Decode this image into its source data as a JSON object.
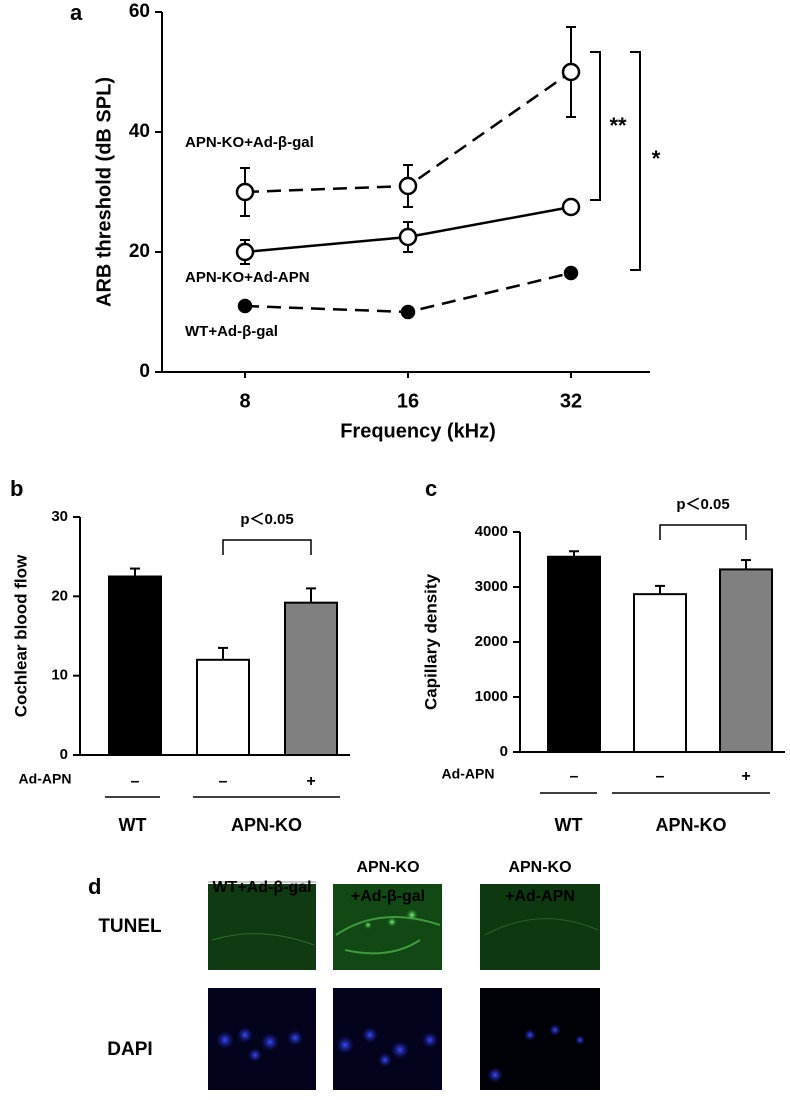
{
  "chart_data": [
    {
      "type": "line",
      "panel": "a",
      "ylabel": "ARB threshold (dB SPL)",
      "xlabel": "Frequency (kHz)",
      "categories": [
        "8",
        "16",
        "32"
      ],
      "ylim": [
        0,
        60
      ],
      "yticks": [
        0,
        20,
        40,
        60
      ],
      "series": [
        {
          "name": "APN-KO+Ad-β-gal",
          "color": "#000000",
          "dashed": true,
          "marker": "open",
          "values": [
            30,
            31,
            50
          ],
          "errors": [
            4,
            3.5,
            7.5
          ]
        },
        {
          "name": "APN-KO+Ad-APN",
          "color": "#000000",
          "dashed": false,
          "marker": "open",
          "values": [
            20,
            22.5,
            27.5
          ],
          "errors": [
            2,
            2.5,
            1
          ]
        },
        {
          "name": "WT+Ad-β-gal",
          "color": "#000000",
          "dashed": true,
          "marker": "filled",
          "values": [
            11,
            10,
            16.5
          ],
          "errors": [
            0.5,
            0.5,
            0.5
          ]
        }
      ],
      "annotations": [
        "**",
        "*"
      ]
    },
    {
      "type": "bar",
      "panel": "b",
      "ylabel": "Cochlear blood flow",
      "row_label": "Ad-APN",
      "categories": [
        "–",
        "–",
        "+"
      ],
      "groups": [
        "WT",
        "APN-KO"
      ],
      "values": [
        22.5,
        12,
        19.2
      ],
      "errors": [
        1,
        1.5,
        1.8
      ],
      "colors": [
        "#000000",
        "#ffffff",
        "#808080"
      ],
      "ylim": [
        0,
        30
      ],
      "yticks": [
        0,
        10,
        20,
        30
      ],
      "annotation": "p＜0.05"
    },
    {
      "type": "bar",
      "panel": "c",
      "ylabel": "Capillary density",
      "row_label": "Ad-APN",
      "categories": [
        "–",
        "–",
        "+"
      ],
      "groups": [
        "WT",
        "APN-KO"
      ],
      "values": [
        3550,
        2870,
        3320
      ],
      "errors": [
        100,
        150,
        170
      ],
      "colors": [
        "#000000",
        "#ffffff",
        "#808080"
      ],
      "ylim": [
        0,
        4000
      ],
      "yticks": [
        0,
        1000,
        2000,
        3000,
        4000
      ],
      "annotation": "p＜0.05"
    }
  ],
  "panel_d": {
    "label": "d",
    "columns": [
      [
        "WT+Ad-β-gal"
      ],
      [
        "APN-KO",
        "+Ad-β-gal"
      ],
      [
        "APN-KO",
        "+Ad-APN"
      ]
    ],
    "rows": [
      "TUNEL",
      "DAPI"
    ]
  }
}
